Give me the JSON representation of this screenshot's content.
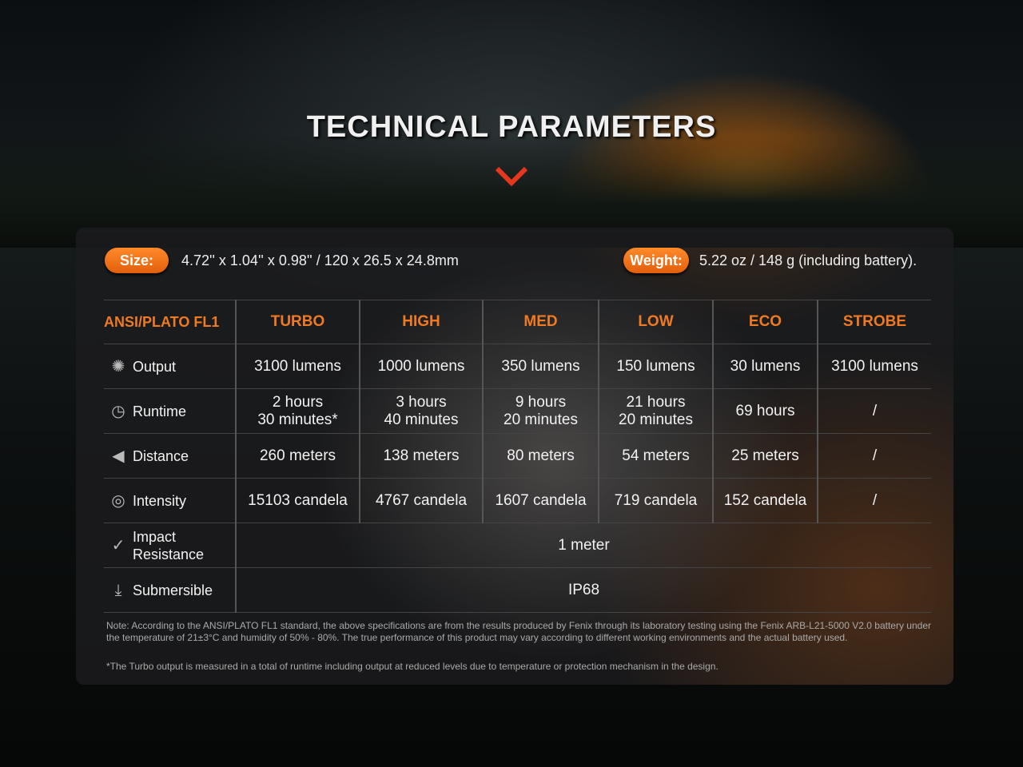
{
  "title": "TECHNICAL PARAMETERS",
  "accent": "#f07a22",
  "size": {
    "label": "Size:",
    "value": "4.72'' x 1.04'' x 0.98'' / 120 x 26.5 x 24.8mm"
  },
  "weight": {
    "label": "Weight:",
    "value": "5.22 oz / 148 g (including battery)."
  },
  "table": {
    "headers": [
      "ANSI/PLATO FL1",
      "TURBO",
      "HIGH",
      "MED",
      "LOW",
      "ECO",
      "STROBE"
    ],
    "rows": [
      {
        "label": "Output",
        "icon": "light-burst-icon",
        "cells": [
          "3100 lumens",
          "1000 lumens",
          "350 lumens",
          "150 lumens",
          "30 lumens",
          "3100 lumens"
        ]
      },
      {
        "label": "Runtime",
        "icon": "clock-icon",
        "cells": [
          "2 hours\n30 minutes*",
          "3 hours\n40 minutes",
          "9 hours\n20 minutes",
          "21 hours\n20 minutes",
          "69 hours",
          "/"
        ]
      },
      {
        "label": "Distance",
        "icon": "beam-distance-icon",
        "cells": [
          "260 meters",
          "138 meters",
          "80 meters",
          "54 meters",
          "25 meters",
          "/"
        ]
      },
      {
        "label": "Intensity",
        "icon": "target-icon",
        "cells": [
          "15103 candela",
          "4767 candela",
          "1607 candela",
          "719 candela",
          "152 candela",
          "/"
        ]
      },
      {
        "label": "Impact\nResistance",
        "icon": "impact-icon",
        "cells": [
          "1 meter"
        ]
      },
      {
        "label": "Submersible",
        "icon": "submersible-icon",
        "cells": [
          "IP68"
        ]
      }
    ]
  },
  "note": "Note: According to the ANSI/PLATO FL1 standard, the above specifications are from the results produced by Fenix through its laboratory testing using the Fenix ARB-L21-5000 V2.0 battery under the temperature of 21±3°C and humidity of 50% - 80%. The true performance of this product may vary according to different working environments and the actual battery used.",
  "footnote": "*The Turbo output is measured in a total of runtime including output at reduced levels due to temperature or protection mechanism in the design."
}
